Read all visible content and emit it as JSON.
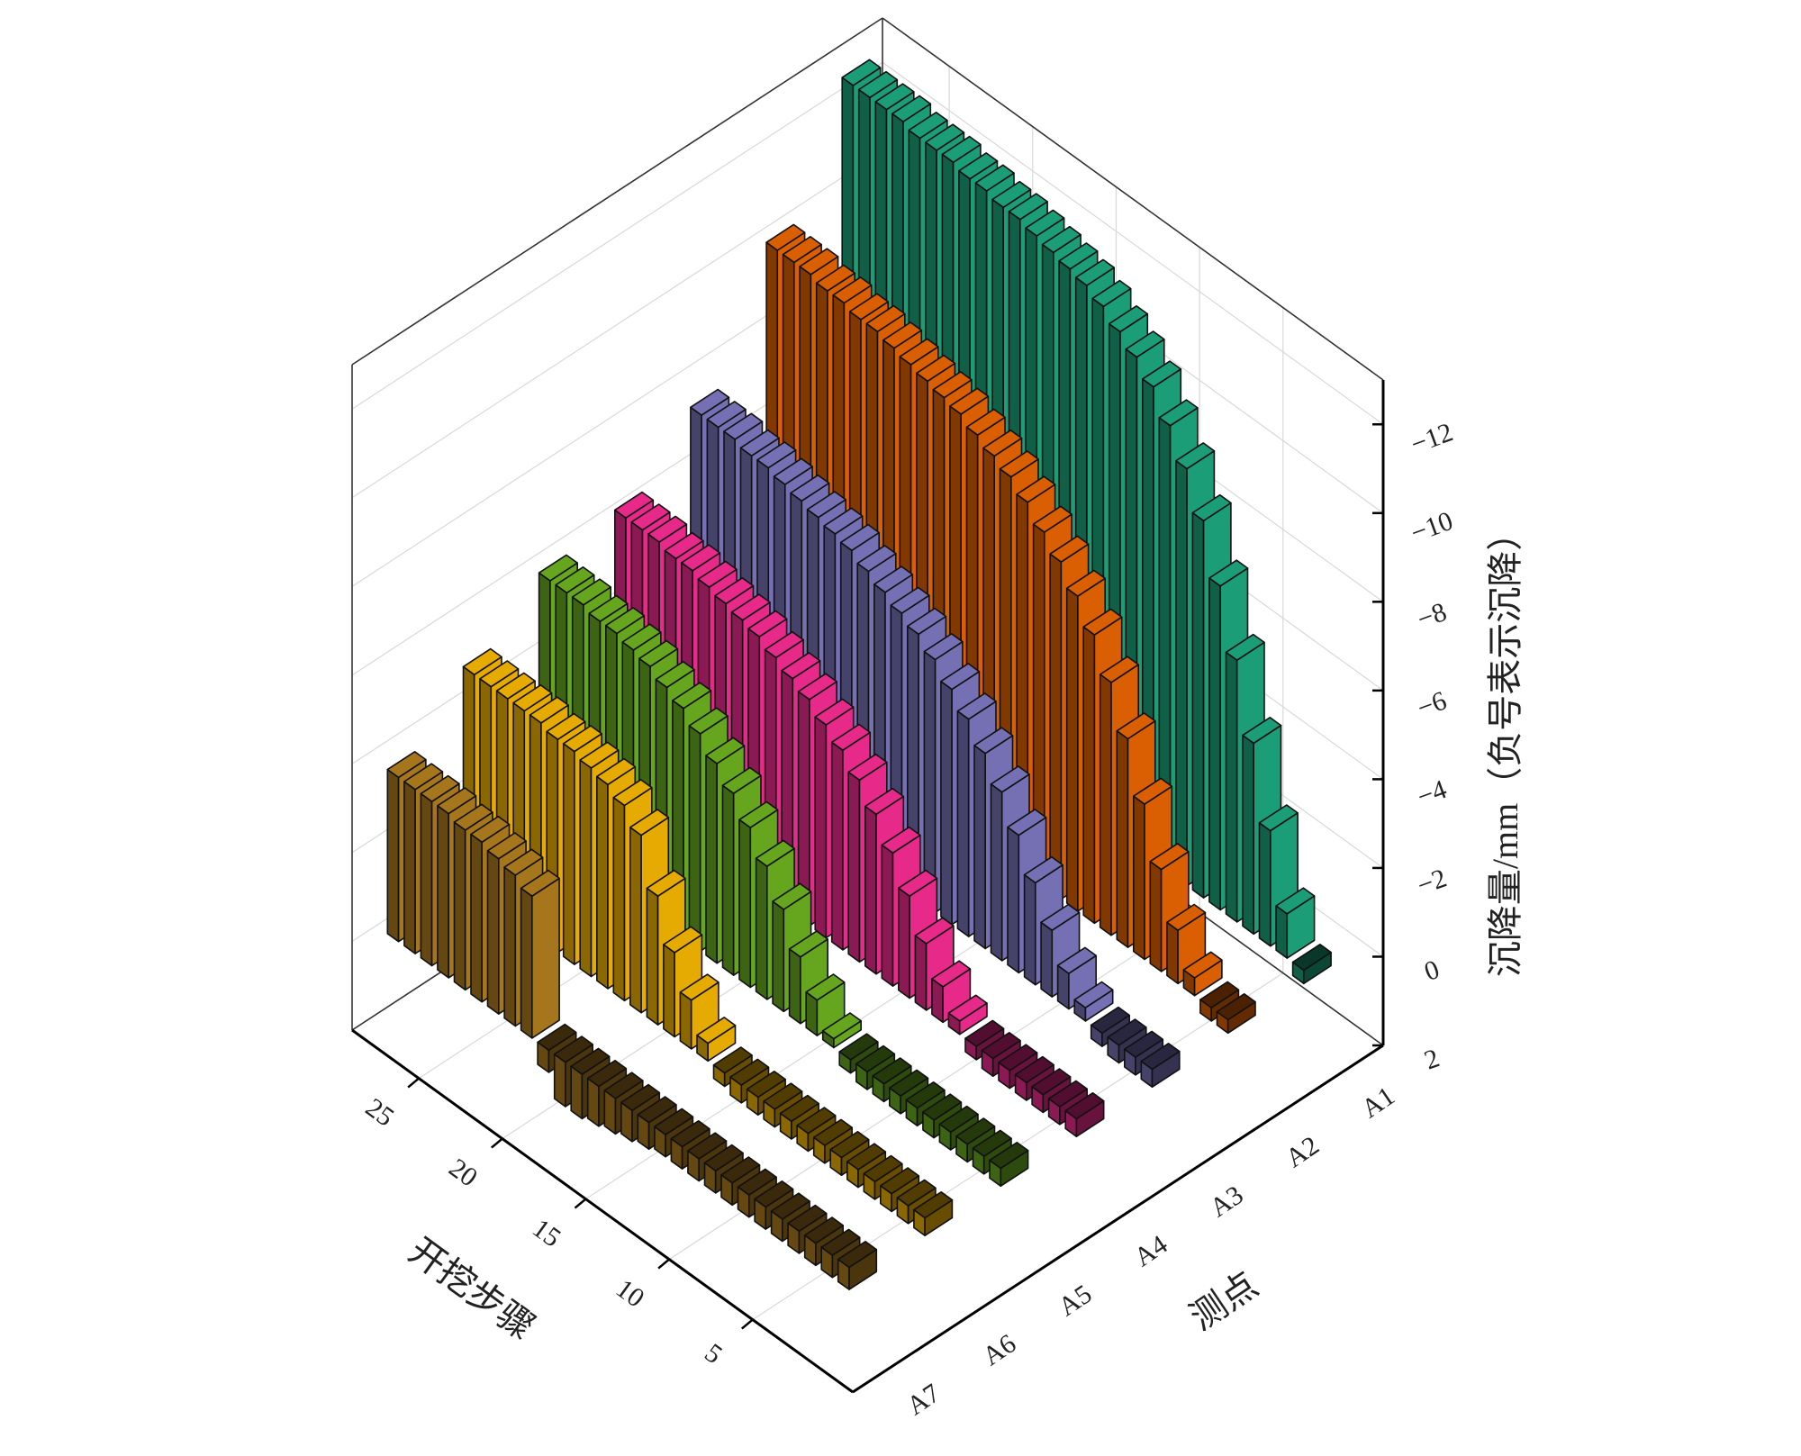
{
  "chart_data": {
    "type": "bar3d",
    "xlabel": "开挖步骤",
    "ylabel": "测点",
    "zlabel": "沉降量/mm（负号表示沉降）",
    "x": [
      1,
      2,
      3,
      4,
      5,
      6,
      7,
      8,
      9,
      10,
      11,
      12,
      13,
      14,
      15,
      16,
      17,
      18,
      19,
      20,
      21,
      22,
      23,
      24,
      25,
      26,
      27,
      28
    ],
    "xlim": [
      -1,
      29
    ],
    "xticks": [
      5,
      10,
      15,
      20,
      25
    ],
    "zlim": [
      2,
      -13
    ],
    "zticks": [
      2,
      0,
      {
        "value": -2,
        "label": "−2"
      },
      {
        "value": -4,
        "label": "−4"
      },
      {
        "value": -6,
        "label": "−6"
      },
      {
        "value": -8,
        "label": "−8"
      },
      {
        "value": -10,
        "label": "−10"
      },
      {
        "value": -12,
        "label": "−12"
      }
    ],
    "grid": true,
    "series": [
      {
        "name": "A1",
        "color": "#1b9e77",
        "values": [
          0.3,
          -1.0,
          -2.6,
          -4.3,
          -5.9,
          -7.3,
          -8.5,
          -9.4,
          -10.1,
          -10.7,
          -11.1,
          -11.4,
          -11.7,
          -11.9,
          -12.0,
          -12.1,
          -12.2,
          -12.3,
          -12.3,
          -12.4,
          -12.4,
          -12.5,
          -12.5,
          -12.5,
          -12.6,
          -12.6,
          -12.6,
          -12.6
        ]
      },
      {
        "name": "A2",
        "color": "#d95f02",
        "values": [
          0.3,
          0.3,
          -0.4,
          -1.2,
          -2.3,
          -3.5,
          -4.7,
          -5.7,
          -6.5,
          -7.1,
          -7.6,
          -8.0,
          -8.4,
          -8.7,
          -8.9,
          -9.1,
          -9.3,
          -9.4,
          -9.5,
          -9.6,
          -9.7,
          -9.8,
          -9.8,
          -9.9,
          -9.9,
          -10.0,
          -10.0,
          -10.0
        ]
      },
      {
        "name": "A3",
        "color": "#7570b3",
        "values": [
          0.4,
          0.4,
          0.4,
          0.3,
          -0.3,
          -0.8,
          -1.5,
          -2.3,
          -3.1,
          -3.8,
          -4.4,
          -4.9,
          -5.3,
          -5.7,
          -6.0,
          -6.2,
          -6.4,
          -6.6,
          -6.8,
          -6.9,
          -7.0,
          -7.1,
          -7.2,
          -7.3,
          -7.3,
          -7.4,
          -7.4,
          -7.4
        ]
      },
      {
        "name": "A4",
        "color": "#e7298a",
        "values": [
          0.4,
          0.4,
          0.4,
          0.4,
          0.4,
          0.4,
          0.3,
          -0.3,
          -0.8,
          -1.5,
          -2.3,
          -3.0,
          -3.6,
          -4.1,
          -4.5,
          -4.8,
          -5.1,
          -5.3,
          -5.5,
          -5.7,
          -5.8,
          -5.9,
          -6.0,
          -6.1,
          -6.1,
          -6.2,
          -6.2,
          -6.2
        ]
      },
      {
        "name": "A5",
        "color": "#66a61e",
        "values": [
          0.4,
          0.4,
          0.4,
          0.4,
          0.4,
          0.4,
          0.4,
          0.4,
          0.4,
          0.3,
          -0.2,
          -0.8,
          -1.5,
          -2.3,
          -3.0,
          -3.6,
          -4.1,
          -4.5,
          -4.9,
          -5.2,
          -5.4,
          -5.6,
          -5.7,
          -5.8,
          -5.8,
          -5.9,
          -5.9,
          -5.9
        ]
      },
      {
        "name": "A6",
        "color": "#e6ab02",
        "values": [
          0.4,
          0.4,
          0.4,
          0.4,
          0.4,
          0.4,
          0.4,
          0.4,
          0.4,
          0.4,
          0.4,
          0.4,
          0.3,
          -0.4,
          -1.1,
          -1.9,
          -2.9,
          -4.0,
          -4.4,
          -4.6,
          -4.7,
          -4.8,
          -4.8,
          -4.9,
          -4.9,
          -4.9,
          -4.9,
          -4.9
        ]
      },
      {
        "name": "A7",
        "color": "#a6761d",
        "values": [
          0.5,
          0.5,
          0.5,
          0.5,
          0.5,
          0.5,
          0.5,
          0.5,
          0.5,
          0.5,
          0.5,
          0.5,
          0.6,
          0.7,
          0.8,
          0.9,
          1.0,
          1.0,
          0.5,
          -3.2,
          -3.4,
          -3.5,
          -3.6,
          -3.6,
          -3.7,
          -3.7,
          -3.7,
          -3.7
        ]
      }
    ]
  }
}
